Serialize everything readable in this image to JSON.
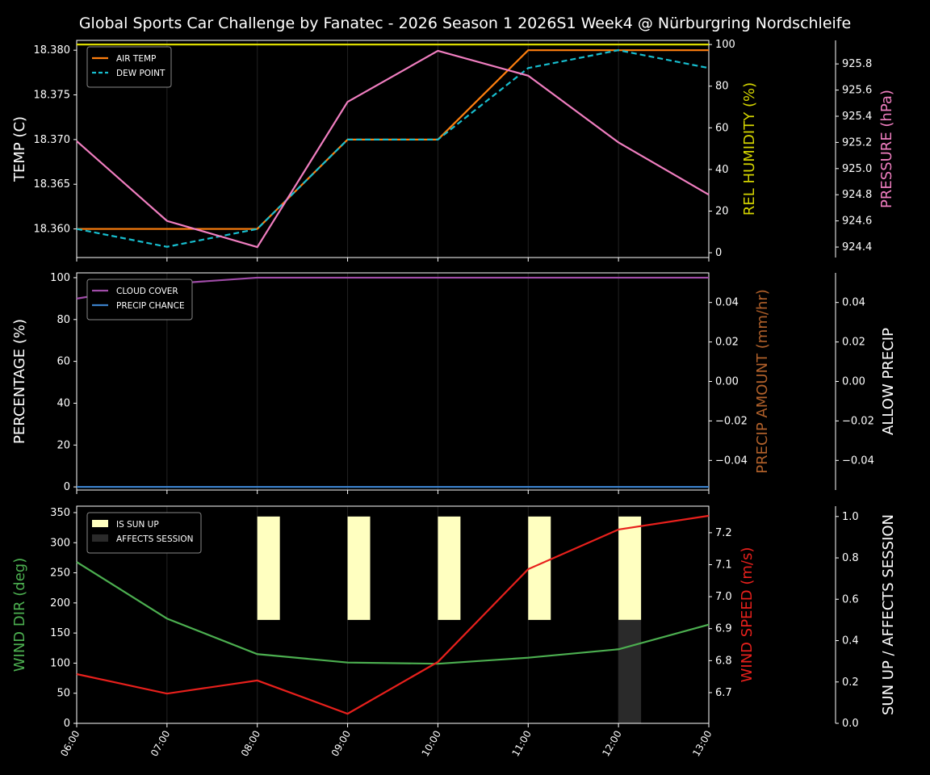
{
  "title": "Global Sports Car Challenge by Fanatec - 2026 Season 1 2026S1 Week4 @ Nürburgring Nordschleife",
  "chart_data": [
    {
      "type": "line",
      "x": [
        "06:00",
        "07:00",
        "08:00",
        "09:00",
        "10:00",
        "11:00",
        "12:00",
        "13:00"
      ],
      "ylabel": "TEMP (C)",
      "ylim": [
        18.3568,
        18.3811
      ],
      "yticks": [
        "18.360",
        "18.365",
        "18.370",
        "18.375",
        "18.380"
      ],
      "legend": "top-left",
      "series": [
        {
          "name": "AIR TEMP",
          "axis": "left",
          "color": "#ff7f0e",
          "dash": false,
          "values": [
            18.36,
            18.36,
            18.36,
            18.37,
            18.37,
            18.38,
            18.38,
            18.38
          ]
        },
        {
          "name": "DEW POINT",
          "axis": "left",
          "color": "#17becf",
          "dash": true,
          "values": [
            18.36,
            18.358,
            18.36,
            18.37,
            18.37,
            18.378,
            18.38,
            18.378
          ]
        },
        {
          "axis": "right1",
          "color": "#dcdc00",
          "values": [
            100,
            100,
            100,
            100,
            100,
            100,
            100,
            100
          ]
        },
        {
          "axis": "right2",
          "color": "#f07ec0",
          "values": [
            925.21,
            924.6,
            924.4,
            925.51,
            925.9,
            925.71,
            925.2,
            924.8
          ]
        }
      ],
      "right1": {
        "label": "REL HUMIDITY (%)",
        "color": "#d4d400",
        "ylim": [
          -2.3,
          102
        ],
        "yticks": [
          "0",
          "20",
          "40",
          "60",
          "80",
          "100"
        ]
      },
      "right2": {
        "label": "PRESSURE (hPa)",
        "color": "#f07ec0",
        "ylim": [
          924.32,
          925.98
        ],
        "yticks": [
          "924.4",
          "924.6",
          "924.8",
          "925.0",
          "925.2",
          "925.4",
          "925.6",
          "925.8"
        ]
      }
    },
    {
      "type": "line",
      "x": [
        "06:00",
        "07:00",
        "08:00",
        "09:00",
        "10:00",
        "11:00",
        "12:00",
        "13:00"
      ],
      "ylabel": "PERCENTAGE (%)",
      "ylim": [
        -1.5,
        102.3
      ],
      "yticks": [
        "0",
        "20",
        "40",
        "60",
        "80",
        "100"
      ],
      "legend": "top-left",
      "series": [
        {
          "name": "CLOUD COVER",
          "axis": "left",
          "color": "#a04ca8",
          "values": [
            90,
            97,
            100,
            100,
            100,
            100,
            100,
            100
          ]
        },
        {
          "name": "PRECIP CHANCE",
          "axis": "left",
          "color": "#3a7fc8",
          "values": [
            0,
            0,
            0,
            0,
            0,
            0,
            0,
            0
          ]
        }
      ],
      "right1": {
        "label": "PRECIP AMOUNT (mm/hr)",
        "color": "#b0602a",
        "ylim": [
          -0.055,
          0.055
        ],
        "yticks": [
          "−0.04",
          "−0.02",
          "0.00",
          "0.02",
          "0.04"
        ]
      },
      "right2": {
        "label": "ALLOW PRECIP",
        "color": "#ffffff",
        "ylim": [
          -0.055,
          0.055
        ],
        "yticks": [
          "−0.04",
          "−0.02",
          "0.00",
          "0.02",
          "0.04"
        ]
      }
    },
    {
      "type": "line",
      "x": [
        "06:00",
        "07:00",
        "08:00",
        "09:00",
        "10:00",
        "11:00",
        "12:00",
        "13:00"
      ],
      "ylabel": "WIND DIR (deg)",
      "ylim": [
        0,
        360.7
      ],
      "yticks": [
        "0",
        "50",
        "100",
        "150",
        "200",
        "250",
        "300",
        "350"
      ],
      "legend": "top-left",
      "series": [
        {
          "axis": "left",
          "color": "#4caf50",
          "values": [
            268,
            174,
            115,
            101,
            99,
            109,
            123,
            164
          ]
        },
        {
          "axis": "right1",
          "color": "#e8201c",
          "values": [
            6.758,
            6.697,
            6.738,
            6.634,
            6.796,
            7.086,
            7.21,
            7.253
          ]
        }
      ],
      "bars": [
        {
          "name": "IS SUN UP",
          "color": "#ffffc0",
          "values": [
            0,
            0,
            1,
            1,
            1,
            1,
            1,
            0
          ]
        },
        {
          "name": "AFFECTS SESSION",
          "color": "#2a2a2a",
          "values": [
            0,
            0,
            0,
            0,
            0,
            0,
            1,
            0
          ]
        }
      ],
      "right1": {
        "label": "WIND SPEED (m/s)",
        "color": "#e8201c",
        "ylim": [
          6.604,
          7.283
        ],
        "yticks": [
          "6.7",
          "6.8",
          "6.9",
          "7.0",
          "7.1",
          "7.2"
        ]
      },
      "right2": {
        "label": "SUN UP / AFFECTS SESSION",
        "color": "#ffffff",
        "ylim": [
          0,
          1.05
        ],
        "yticks": [
          "0.0",
          "0.2",
          "0.4",
          "0.6",
          "0.8",
          "1.0"
        ]
      }
    }
  ]
}
